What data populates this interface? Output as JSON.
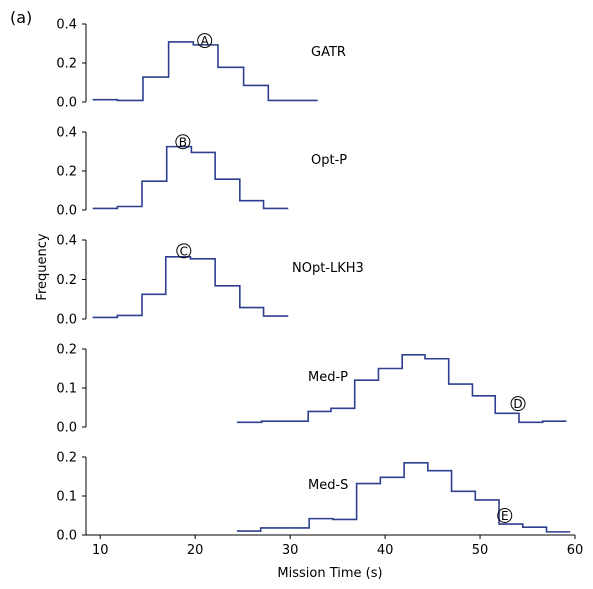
{
  "figure": {
    "panel_label": "(a)"
  },
  "chart_data": {
    "type": "step",
    "ylabel": "Frequency",
    "xlabel": "Mission Time (s)",
    "xlim": [
      8.5,
      60
    ],
    "x_ticks": [
      10,
      20,
      30,
      40,
      50,
      60
    ],
    "x_tick_labels": [
      "10",
      "20",
      "30",
      "40",
      "50",
      "60"
    ],
    "line_color": "#2e3f8f",
    "panels": [
      {
        "name": "GATR",
        "ylim": [
          0,
          0.4
        ],
        "y_ticks": [
          0,
          0.2,
          0.4
        ],
        "y_tick_labels": [
          "0.0",
          "0.2",
          "0.4"
        ],
        "edges": [
          9.2,
          11.8,
          14.5,
          17.2,
          19.8,
          22.4,
          25.1,
          27.7,
          30.3,
          32.9
        ],
        "values": [
          0.012,
          0.008,
          0.128,
          0.308,
          0.293,
          0.178,
          0.085,
          0.008,
          0.008
        ],
        "marker": {
          "label": "A",
          "x": 21.0,
          "y": 0.315
        }
      },
      {
        "name": "Opt-P",
        "ylim": [
          0,
          0.4
        ],
        "y_ticks": [
          0,
          0.2,
          0.4
        ],
        "y_tick_labels": [
          "0.0",
          "0.2",
          "0.4"
        ],
        "edges": [
          9.2,
          11.8,
          14.4,
          17.0,
          19.6,
          22.1,
          24.7,
          27.2,
          29.8
        ],
        "values": [
          0.008,
          0.018,
          0.148,
          0.325,
          0.295,
          0.158,
          0.048,
          0.008
        ],
        "marker": {
          "label": "B",
          "x": 18.7,
          "y": 0.35
        }
      },
      {
        "name": "NOpt-LKH3",
        "ylim": [
          0,
          0.4
        ],
        "y_ticks": [
          0,
          0.2,
          0.4
        ],
        "y_tick_labels": [
          "0.0",
          "0.2",
          "0.4"
        ],
        "edges": [
          9.2,
          11.8,
          14.4,
          16.9,
          19.5,
          22.1,
          24.7,
          27.2,
          29.8
        ],
        "values": [
          0.008,
          0.018,
          0.125,
          0.315,
          0.305,
          0.168,
          0.058,
          0.015
        ],
        "marker": {
          "label": "C",
          "x": 18.8,
          "y": 0.345
        }
      },
      {
        "name": "Med-P",
        "ylim": [
          0,
          0.2
        ],
        "y_ticks": [
          0,
          0.1,
          0.2
        ],
        "y_tick_labels": [
          "0.0",
          "0.1",
          "0.2"
        ],
        "edges": [
          24.4,
          27.0,
          29.4,
          31.9,
          34.3,
          36.8,
          39.3,
          41.8,
          44.2,
          46.7,
          49.2,
          51.6,
          54.1,
          56.6,
          59.1
        ],
        "values": [
          0.012,
          0.015,
          0.015,
          0.04,
          0.048,
          0.12,
          0.15,
          0.185,
          0.175,
          0.11,
          0.08,
          0.035,
          0.012,
          0.015
        ],
        "marker": {
          "label": "D",
          "x": 54.0,
          "y": 0.06
        }
      },
      {
        "name": "Med-S",
        "ylim": [
          0,
          0.2
        ],
        "y_ticks": [
          0,
          0.1,
          0.2
        ],
        "y_tick_labels": [
          "0.0",
          "0.1",
          "0.2"
        ],
        "edges": [
          24.4,
          26.9,
          29.5,
          32.0,
          34.5,
          37.0,
          39.5,
          42.0,
          44.5,
          47.0,
          49.5,
          52.0,
          54.5,
          57.0,
          59.5
        ],
        "values": [
          0.01,
          0.018,
          0.018,
          0.042,
          0.04,
          0.132,
          0.148,
          0.185,
          0.165,
          0.112,
          0.09,
          0.028,
          0.02,
          0.008
        ],
        "marker": {
          "label": "E",
          "x": 52.6,
          "y": 0.05
        }
      }
    ]
  }
}
